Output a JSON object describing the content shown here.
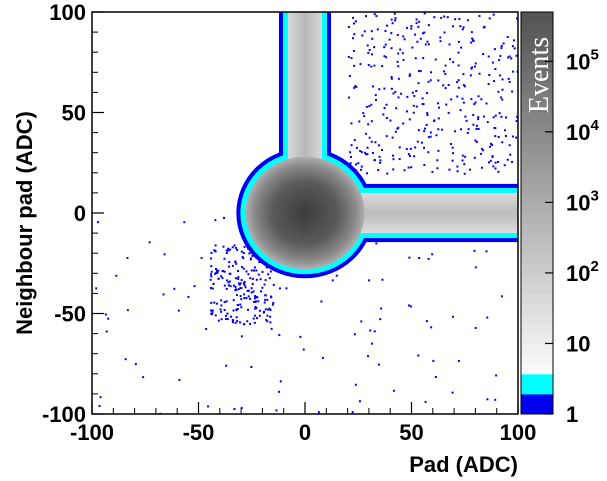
{
  "chart_data": {
    "type": "heatmap",
    "xlabel": "Pad (ADC)",
    "ylabel": "Neighbour pad (ADC)",
    "xlim": [
      -100,
      100
    ],
    "ylim": [
      -100,
      100
    ],
    "x_ticks": [
      {
        "value": -100,
        "label": "-100"
      },
      {
        "value": -50,
        "label": "-50"
      },
      {
        "value": 0,
        "label": "0"
      },
      {
        "value": 50,
        "label": "50"
      },
      {
        "value": 100,
        "label": "100"
      }
    ],
    "y_ticks": [
      {
        "value": -100,
        "label": "-100"
      },
      {
        "value": -50,
        "label": "-50"
      },
      {
        "value": 0,
        "label": "0"
      },
      {
        "value": 50,
        "label": "50"
      },
      {
        "value": 100,
        "label": "100"
      }
    ],
    "colorbar": {
      "title": "Events",
      "scale": "log",
      "zlim": [
        1,
        500000
      ],
      "ticks": [
        {
          "value": 1,
          "label": "1"
        },
        {
          "value": 10,
          "label": "10"
        },
        {
          "value": 100,
          "base": "10",
          "exp": "2"
        },
        {
          "value": 1000,
          "base": "10",
          "exp": "3"
        },
        {
          "value": 10000,
          "base": "10",
          "exp": "4"
        },
        {
          "value": 100000,
          "base": "10",
          "exp": "5"
        }
      ]
    },
    "regions": [
      {
        "shape": "blob",
        "x": 0,
        "y": 0,
        "radius_x": 28,
        "radius_y": 28,
        "peak_events": 500000
      },
      {
        "shape": "band",
        "x_range": [
          -8,
          8
        ],
        "y_range": [
          0,
          100
        ],
        "peak_events": 5000
      },
      {
        "shape": "band",
        "x_range": [
          0,
          100
        ],
        "y_range": [
          -10,
          10
        ],
        "peak_events": 5000
      },
      {
        "shape": "scatter",
        "x_range": [
          -100,
          100
        ],
        "y_range": [
          -100,
          100
        ],
        "events": 1
      }
    ],
    "colors": {
      "low_1": "#0000ee",
      "low_2": "#00ffff",
      "high": "#4a4a4a"
    }
  }
}
